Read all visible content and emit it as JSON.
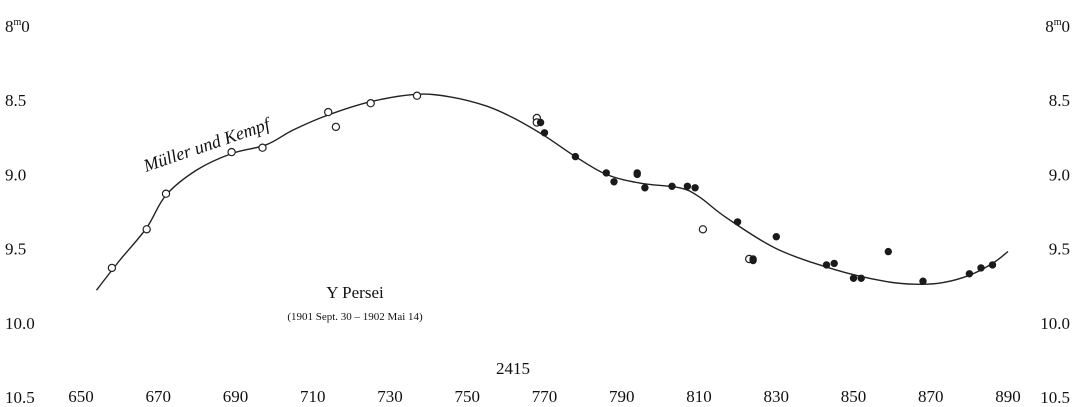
{
  "chart_data": {
    "type": "scatter",
    "title": "Y Persei",
    "subtitle": "(1901 Sept. 30 – 1902 Mai 14)",
    "xlabel": "2415",
    "ylabel": "",
    "xlim": [
      650,
      890
    ],
    "ylim": [
      8.0,
      10.5
    ],
    "y_inverted": true,
    "grid": false,
    "x_ticks": [
      "650",
      "670",
      "690",
      "710",
      "730",
      "750",
      "770",
      "790",
      "810",
      "830",
      "850",
      "870",
      "890"
    ],
    "y_ticks_left": [
      "8.0",
      "8.5",
      "9.0",
      "9.5",
      "10.0",
      "10.5"
    ],
    "y_ticks_right": [
      "8.0",
      "8.5",
      "9.0",
      "9.5",
      "10.0",
      "10.5"
    ],
    "top_tick_label": "8m0",
    "curve_label": "Müller und Kempf",
    "series": [
      {
        "name": "Müller und Kempf",
        "marker": "open",
        "x": [
          658,
          667,
          672,
          689,
          697,
          714,
          716,
          725,
          737,
          768,
          768,
          811,
          823
        ],
        "y": [
          9.63,
          9.37,
          9.13,
          8.85,
          8.82,
          8.58,
          8.68,
          8.52,
          8.47,
          8.62,
          8.65,
          9.37,
          9.57
        ]
      },
      {
        "name": "",
        "marker": "filled",
        "x": [
          769,
          770,
          778,
          786,
          788,
          794,
          794,
          796,
          803,
          807,
          809,
          820,
          824,
          824,
          830,
          843,
          845,
          850,
          852,
          859,
          868,
          880,
          883,
          886
        ],
        "y": [
          8.65,
          8.72,
          8.88,
          8.99,
          9.05,
          8.99,
          9.0,
          9.09,
          9.08,
          9.08,
          9.09,
          9.32,
          9.57,
          9.58,
          9.42,
          9.61,
          9.6,
          9.7,
          9.7,
          9.52,
          9.72,
          9.67,
          9.63,
          9.61
        ]
      }
    ],
    "curve": {
      "x": [
        654,
        660,
        667,
        672,
        680,
        689,
        698,
        705,
        714,
        725,
        737,
        746,
        755,
        762,
        770,
        778,
        786,
        795,
        805,
        810,
        817,
        830,
        845,
        858,
        866,
        873,
        880,
        886,
        890
      ],
      "y": [
        9.78,
        9.58,
        9.36,
        9.14,
        8.97,
        8.86,
        8.8,
        8.7,
        8.6,
        8.51,
        8.46,
        8.48,
        8.54,
        8.62,
        8.74,
        8.88,
        9.0,
        9.06,
        9.09,
        9.15,
        9.29,
        9.5,
        9.64,
        9.72,
        9.74,
        9.73,
        9.68,
        9.6,
        9.52
      ]
    }
  }
}
